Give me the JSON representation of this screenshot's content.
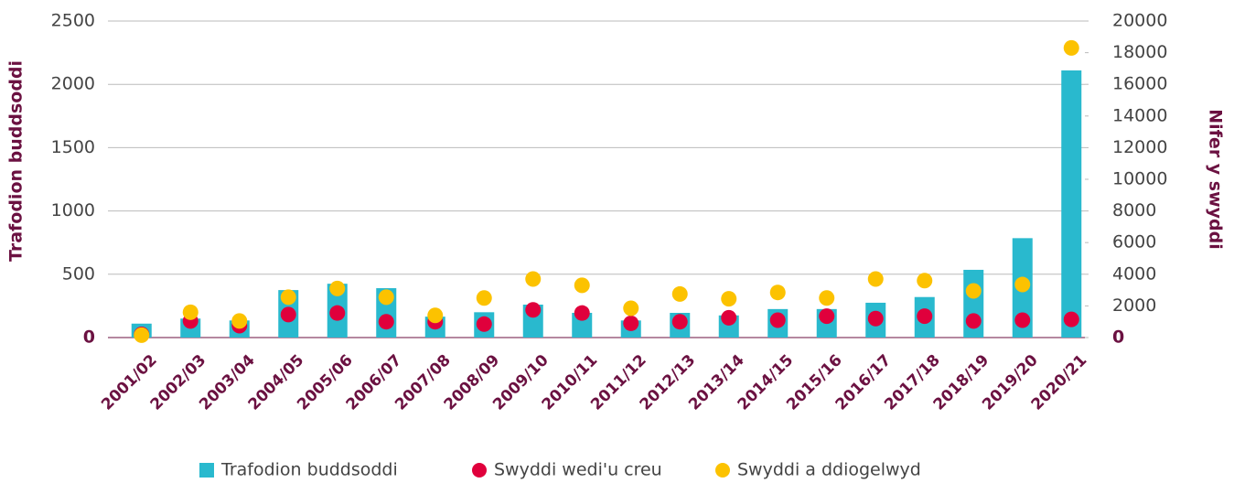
{
  "chart_data": {
    "type": "bar",
    "y_label": "Trafodion buddsoddi",
    "y2_label": "Nifer y swyddi",
    "categories": [
      "2001/02",
      "2002/03",
      "2003/04",
      "2004/05",
      "2005/06",
      "2006/07",
      "2007/08",
      "2008/09",
      "2009/10",
      "2010/11",
      "2011/12",
      "2012/13",
      "2013/14",
      "2014/15",
      "2015/16",
      "2016/17",
      "2017/18",
      "2018/19",
      "2019/20",
      "2020/21"
    ],
    "series": [
      {
        "name": "Trafodion buddsoddi",
        "type": "bar",
        "axis": "y",
        "color": "#29b9ce",
        "values": [
          110,
          150,
          135,
          375,
          425,
          390,
          165,
          200,
          260,
          195,
          135,
          195,
          175,
          225,
          225,
          275,
          320,
          535,
          785,
          2110
        ]
      },
      {
        "name": "Swyddi wedi'u creu",
        "type": "scatter",
        "axis": "y2",
        "color": "#e0003c",
        "values": [
          200,
          1050,
          750,
          1450,
          1550,
          1000,
          1000,
          850,
          1750,
          1550,
          900,
          1000,
          1250,
          1100,
          1350,
          1200,
          1350,
          1050,
          1100,
          1150
        ]
      },
      {
        "name": "Swyddi a ddiogelwyd",
        "type": "scatter",
        "axis": "y2",
        "color": "#fcc200",
        "values": [
          150,
          1600,
          1050,
          2550,
          3100,
          2550,
          1400,
          2500,
          3700,
          3300,
          1850,
          2750,
          2450,
          2850,
          2500,
          3700,
          3600,
          2950,
          3350,
          18300
        ]
      }
    ],
    "ylim": [
      0,
      2500
    ],
    "yticks": [
      0,
      500,
      1000,
      1500,
      2000,
      2500
    ],
    "y2lim": [
      0,
      20000
    ],
    "y2ticks": [
      0,
      2000,
      4000,
      6000,
      8000,
      10000,
      12000,
      14000,
      16000,
      18000,
      20000
    ],
    "grid": true,
    "legend": "bottom"
  }
}
